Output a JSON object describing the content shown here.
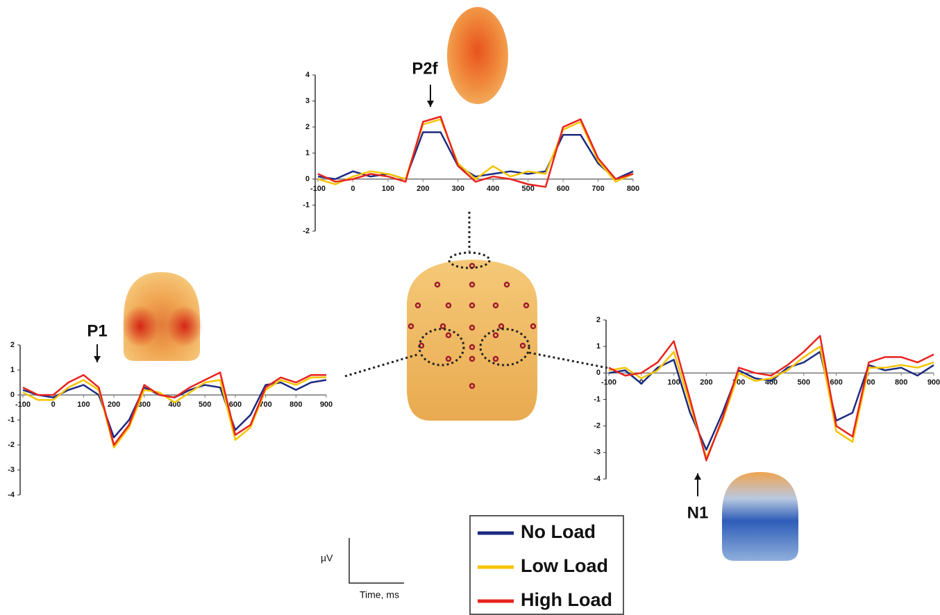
{
  "chart_data": [
    {
      "type": "line",
      "annotation": "P2f",
      "x": [
        -100,
        -50,
        0,
        50,
        100,
        150,
        200,
        250,
        300,
        350,
        400,
        450,
        500,
        550,
        600,
        650,
        700,
        750,
        800
      ],
      "xlim": [
        -100,
        800
      ],
      "ylim": [
        -2,
        4
      ],
      "xticks": [
        -100,
        0,
        100,
        200,
        300,
        400,
        500,
        600,
        700,
        800
      ],
      "yticks": [
        -2,
        -1,
        0,
        1,
        2,
        3,
        4
      ],
      "series": [
        {
          "name": "No Load",
          "color": "#1c2a80",
          "values": [
            0.1,
            0,
            0.3,
            0.1,
            0.2,
            0,
            1.8,
            1.8,
            0.5,
            0.1,
            0.2,
            0.3,
            0.2,
            0.3,
            1.7,
            1.7,
            0.6,
            0,
            0.3
          ]
        },
        {
          "name": "Low Load",
          "color": "#f5c400",
          "values": [
            0,
            -0.2,
            0.1,
            0.3,
            0.2,
            0,
            2.1,
            2.3,
            0.6,
            0,
            0.5,
            0.1,
            0.3,
            0.2,
            1.9,
            2.2,
            0.7,
            -0.1,
            0.2
          ]
        },
        {
          "name": "High Load",
          "color": "#e8231e",
          "values": [
            0.2,
            -0.1,
            0,
            0.2,
            0.1,
            -0.1,
            2.2,
            2.4,
            0.5,
            -0.1,
            0.1,
            0,
            -0.2,
            -0.3,
            2.0,
            2.3,
            0.8,
            0,
            0.2
          ]
        }
      ]
    },
    {
      "type": "line",
      "annotation": "P1",
      "x": [
        -100,
        -50,
        0,
        50,
        100,
        150,
        200,
        250,
        300,
        350,
        400,
        450,
        500,
        550,
        600,
        650,
        700,
        750,
        800,
        850,
        900
      ],
      "xlim": [
        -100,
        900
      ],
      "ylim": [
        -4,
        2
      ],
      "xticks": [
        -100,
        0,
        100,
        200,
        300,
        400,
        500,
        600,
        700,
        800,
        900
      ],
      "yticks": [
        -4,
        -3,
        -2,
        -1,
        0,
        1,
        2
      ],
      "series": [
        {
          "name": "No Load",
          "color": "#1c2a80",
          "values": [
            0.2,
            0,
            -0.1,
            0.2,
            0.4,
            0,
            -1.7,
            -1,
            0.3,
            0,
            -0.1,
            0.2,
            0.4,
            0.3,
            -1.4,
            -0.8,
            0.4,
            0.5,
            0.2,
            0.5,
            0.6
          ]
        },
        {
          "name": "Low Load",
          "color": "#f5c400",
          "values": [
            0.1,
            -0.2,
            -0.2,
            0.3,
            0.6,
            0.2,
            -2.1,
            -1.3,
            0.2,
            0.1,
            -0.3,
            0.1,
            0.5,
            0.6,
            -1.8,
            -1.3,
            0.2,
            0.6,
            0.4,
            0.7,
            0.7
          ]
        },
        {
          "name": "High Load",
          "color": "#e8231e",
          "values": [
            0.3,
            0,
            0,
            0.5,
            0.8,
            0.3,
            -2,
            -1.2,
            0.4,
            0,
            -0.1,
            0.3,
            0.6,
            0.9,
            -1.6,
            -1.2,
            0.3,
            0.7,
            0.5,
            0.8,
            0.8
          ]
        }
      ]
    },
    {
      "type": "line",
      "annotation": "N1",
      "x": [
        -100,
        -50,
        0,
        50,
        100,
        150,
        200,
        250,
        300,
        350,
        400,
        450,
        500,
        550,
        600,
        650,
        700,
        750,
        800,
        850,
        900
      ],
      "xlim": [
        -100,
        900
      ],
      "ylim": [
        -4,
        2
      ],
      "xticks": [
        -100,
        0,
        100,
        200,
        300,
        400,
        500,
        600,
        700,
        800,
        900
      ],
      "yticks": [
        -4,
        -3,
        -2,
        -1,
        0,
        1,
        2
      ],
      "series": [
        {
          "name": "No Load",
          "color": "#1c2a80",
          "values": [
            0,
            0.1,
            -0.4,
            0.2,
            0.5,
            -1.5,
            -2.9,
            -1.5,
            0.1,
            -0.2,
            -0.3,
            0.2,
            0.4,
            0.8,
            -1.8,
            -1.5,
            0.3,
            0.1,
            0.2,
            -0.1,
            0.3
          ]
        },
        {
          "name": "Low Load",
          "color": "#f5c400",
          "values": [
            0.1,
            0.2,
            -0.2,
            0.1,
            0.8,
            -1.2,
            -3.2,
            -1.8,
            0,
            -0.3,
            -0.2,
            0.1,
            0.6,
            1.0,
            -2.2,
            -2.6,
            0.2,
            0.2,
            0.3,
            0.2,
            0.4
          ]
        },
        {
          "name": "High Load",
          "color": "#e8231e",
          "values": [
            0.2,
            -0.1,
            0,
            0.4,
            1.2,
            -1,
            -3.3,
            -1.7,
            0.2,
            0,
            -0.1,
            0.3,
            0.8,
            1.4,
            -2,
            -2.4,
            0.4,
            0.6,
            0.6,
            0.4,
            0.7
          ]
        }
      ]
    }
  ],
  "scale_bar": {
    "y_label": "µV",
    "x_label": "Time, ms"
  }
}
